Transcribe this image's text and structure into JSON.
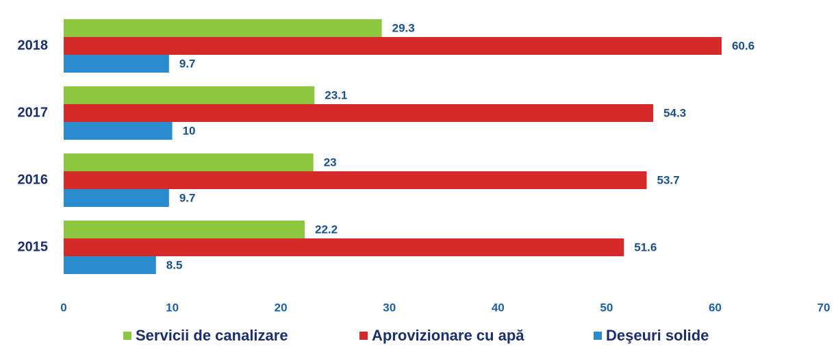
{
  "chart_data": {
    "type": "barh",
    "categories": [
      "2018",
      "2017",
      "2016",
      "2015"
    ],
    "series": [
      {
        "name": "Servicii de canalizare",
        "color": "#8dc63f",
        "values": [
          29.3,
          23.1,
          23,
          22.2
        ]
      },
      {
        "name": "Aprovizionare cu apă",
        "color": "#d42a2a",
        "values": [
          60.6,
          54.3,
          53.7,
          51.6
        ]
      },
      {
        "name": "Deşeuri solide",
        "color": "#2a8ccc",
        "values": [
          9.7,
          10,
          9.7,
          8.5
        ]
      }
    ],
    "xlim": [
      0,
      70
    ],
    "xticks": [
      0,
      10,
      20,
      30,
      40,
      50,
      60,
      70
    ],
    "legend": "bottom"
  }
}
